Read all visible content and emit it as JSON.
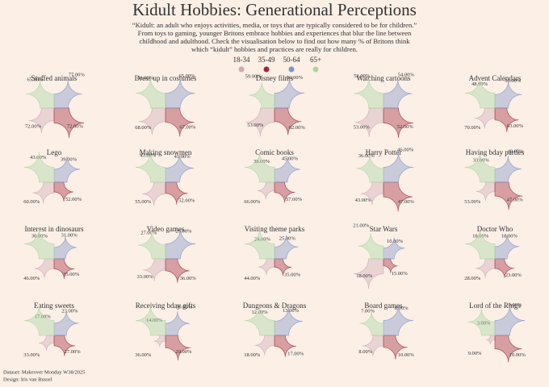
{
  "chart_data": {
    "type": "petal",
    "title": "Kidult Hobbies: Generational Perceptions",
    "subtitle": [
      "“Kidult: an adult who enjoys activities, media, or toys that are typically considered to be for children.”",
      "From toys to gaming, younger Britons embrace hobbies and experiences that blur the line between",
      "childhood and adulthood.  Check the visualisation below to find out how many % of Britons think",
      "which “kidult” hobbies and practices are really for children."
    ],
    "categories": [
      "Stuffed animals",
      "Dress up in costumes",
      "Disney films",
      "Watching cartoons",
      "Advent Calendars",
      "Lego",
      "Making snowmen",
      "Comic books",
      "Harry Potter",
      "Having bday parties",
      "Interest in dinosaurs",
      "Video games",
      "Visiting theme parks",
      "Star Wars",
      "Doctor Who",
      "Eating sweets",
      "Receiving bday gifts",
      "Dungeons & Dragons",
      "Board games",
      "Lord of the Rings"
    ],
    "series": [
      {
        "name": "18-34",
        "color": "#cfa9b6",
        "values": [
          65,
          61,
          59,
          52,
          48,
          43,
          43,
          38,
          36,
          33,
          30,
          27,
          24,
          21,
          18,
          17,
          14,
          12,
          7,
          3
        ],
        "value_labels": [
          "65.00%",
          "61.00%",
          "59.00%",
          "52.00%",
          "48.00%",
          "43.00%",
          "43.00%",
          "38.00%",
          "36.00%",
          "33.00%",
          "30.00%",
          "27.00%",
          "24.00%",
          "21.00%",
          "18.00%",
          "17.00%",
          "14.00%",
          "12.00%",
          "7.00%",
          "3.00%"
        ]
      },
      {
        "name": "35-49",
        "color": "#a3293a",
        "values": [
          77,
          65,
          56,
          54,
          56,
          39,
          41,
          45,
          46,
          49,
          31,
          29,
          25,
          10,
          18,
          23,
          30,
          13,
          8,
          9
        ],
        "value_labels": [
          "77.00%",
          "65.00%",
          "56.00%",
          "54.00%",
          "56.00%",
          "39.00%",
          "41.00%",
          "45.00%",
          "46.00%",
          "49.00%",
          "31.00%",
          "29.00%",
          "25.00%",
          "10.00%",
          "18.00%",
          "23.00%",
          "30.00%",
          "13.00%",
          "8.00%",
          "9.00%"
        ]
      },
      {
        "name": "50-64",
        "color": "#7f95c9",
        "values": [
          72,
          67,
          62,
          52,
          63,
          52,
          52,
          57,
          47,
          47,
          35,
          36,
          35,
          15,
          23,
          27,
          29,
          17,
          10,
          10
        ],
        "value_labels": [
          "72.00%",
          "67.00%",
          "62.00%",
          "52.00%",
          "63.00%",
          "52.00%",
          "52.00%",
          "57.00%",
          "47.00%",
          "47.00%",
          "35.00%",
          "36.00%",
          "35.00%",
          "15.00%",
          "23.00%",
          "27.00%",
          "29.00%",
          "17.00%",
          "10.00%",
          "10.00%"
        ]
      },
      {
        "name": "65+",
        "color": "#a8d8a3",
        "values": [
          72,
          68,
          53,
          53,
          70,
          60,
          55,
          66,
          43,
          53,
          46,
          33,
          44,
          18,
          28,
          33,
          36,
          18,
          8,
          9
        ],
        "value_labels": [
          "72.00%",
          "68.00%",
          "53.00%",
          "53.00%",
          "70.00%",
          "60.00%",
          "55.00%",
          "66.00%",
          "43.00%",
          "53.00%",
          "46.00%",
          "33.00%",
          "44.00%",
          "18.00%",
          "28.00%",
          "33.00%",
          "36.00%",
          "18.00%",
          "8.00%",
          "9.00%"
        ]
      }
    ],
    "notes": [
      "Dataset: Makeover Monday W38/2025",
      "Design: Iris van Bussel"
    ]
  }
}
